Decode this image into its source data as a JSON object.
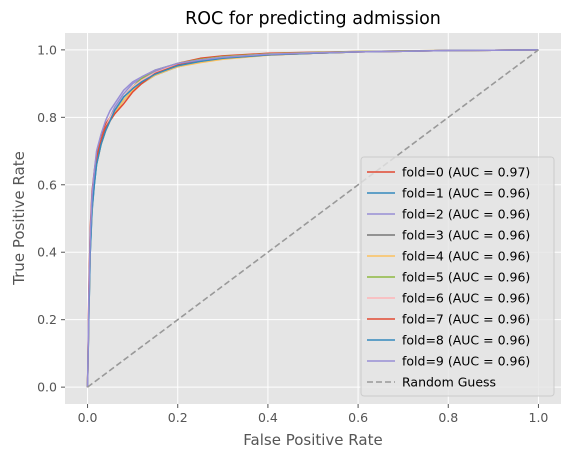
{
  "chart_data": {
    "type": "line",
    "title": "ROC for predicting admission",
    "xlabel": "False Positive Rate",
    "ylabel": "True Positive Rate",
    "xlim": [
      -0.05,
      1.05
    ],
    "ylim": [
      -0.05,
      1.05
    ],
    "xticks": [
      "0.0",
      "0.2",
      "0.4",
      "0.6",
      "0.8",
      "1.0"
    ],
    "yticks": [
      "0.0",
      "0.2",
      "0.4",
      "0.6",
      "0.8",
      "1.0"
    ],
    "grid": true,
    "background": "#e5e5e5",
    "legend_position": "lower right",
    "series": [
      {
        "name": "fold=0 (AUC = 0.97)",
        "color": "#E24A33",
        "dash": false,
        "x": [
          0,
          0.003,
          0.006,
          0.01,
          0.015,
          0.02,
          0.03,
          0.04,
          0.05,
          0.06,
          0.08,
          0.1,
          0.12,
          0.15,
          0.18,
          0.2,
          0.25,
          0.3,
          0.4,
          0.5,
          0.6,
          0.7,
          0.8,
          0.9,
          1.0
        ],
        "y": [
          0,
          0.3,
          0.47,
          0.58,
          0.64,
          0.69,
          0.74,
          0.78,
          0.8,
          0.82,
          0.86,
          0.89,
          0.91,
          0.935,
          0.95,
          0.96,
          0.975,
          0.982,
          0.99,
          0.993,
          0.995,
          0.997,
          0.998,
          0.999,
          1.0
        ]
      },
      {
        "name": "fold=1 (AUC = 0.96)",
        "color": "#348ABD",
        "dash": false,
        "x": [
          0,
          0.003,
          0.006,
          0.01,
          0.015,
          0.02,
          0.03,
          0.04,
          0.05,
          0.06,
          0.08,
          0.1,
          0.12,
          0.15,
          0.18,
          0.2,
          0.25,
          0.3,
          0.4,
          0.5,
          0.6,
          0.7,
          0.8,
          0.9,
          1.0
        ],
        "y": [
          0,
          0.22,
          0.4,
          0.52,
          0.6,
          0.66,
          0.72,
          0.76,
          0.79,
          0.81,
          0.85,
          0.88,
          0.9,
          0.925,
          0.94,
          0.95,
          0.965,
          0.975,
          0.985,
          0.99,
          0.994,
          0.996,
          0.998,
          0.999,
          1.0
        ]
      },
      {
        "name": "fold=2 (AUC = 0.96)",
        "color": "#988ED5",
        "dash": false,
        "x": [
          0,
          0.003,
          0.006,
          0.01,
          0.015,
          0.02,
          0.03,
          0.04,
          0.05,
          0.06,
          0.08,
          0.1,
          0.12,
          0.15,
          0.18,
          0.2,
          0.25,
          0.3,
          0.4,
          0.5,
          0.6,
          0.7,
          0.8,
          0.9,
          1.0
        ],
        "y": [
          0,
          0.25,
          0.43,
          0.55,
          0.62,
          0.68,
          0.73,
          0.77,
          0.8,
          0.83,
          0.87,
          0.9,
          0.915,
          0.935,
          0.95,
          0.958,
          0.97,
          0.978,
          0.986,
          0.991,
          0.994,
          0.996,
          0.998,
          0.999,
          1.0
        ]
      },
      {
        "name": "fold=3 (AUC = 0.96)",
        "color": "#777777",
        "dash": false,
        "x": [
          0,
          0.003,
          0.006,
          0.01,
          0.015,
          0.02,
          0.03,
          0.04,
          0.05,
          0.06,
          0.08,
          0.1,
          0.12,
          0.15,
          0.18,
          0.2,
          0.25,
          0.3,
          0.4,
          0.5,
          0.6,
          0.7,
          0.8,
          0.9,
          1.0
        ],
        "y": [
          0,
          0.24,
          0.42,
          0.54,
          0.61,
          0.67,
          0.72,
          0.76,
          0.79,
          0.82,
          0.86,
          0.89,
          0.91,
          0.93,
          0.945,
          0.955,
          0.968,
          0.976,
          0.985,
          0.99,
          0.994,
          0.996,
          0.998,
          0.999,
          1.0
        ]
      },
      {
        "name": "fold=4 (AUC = 0.96)",
        "color": "#FBC15E",
        "dash": false,
        "x": [
          0,
          0.003,
          0.006,
          0.01,
          0.015,
          0.02,
          0.03,
          0.04,
          0.05,
          0.06,
          0.08,
          0.1,
          0.12,
          0.15,
          0.18,
          0.2,
          0.25,
          0.3,
          0.4,
          0.5,
          0.6,
          0.7,
          0.8,
          0.9,
          1.0
        ],
        "y": [
          0,
          0.23,
          0.41,
          0.53,
          0.61,
          0.66,
          0.72,
          0.76,
          0.79,
          0.81,
          0.85,
          0.88,
          0.9,
          0.925,
          0.94,
          0.95,
          0.962,
          0.972,
          0.984,
          0.99,
          0.994,
          0.996,
          0.998,
          0.999,
          1.0
        ]
      },
      {
        "name": "fold=5 (AUC = 0.96)",
        "color": "#8EBA42",
        "dash": false,
        "x": [
          0,
          0.003,
          0.006,
          0.01,
          0.015,
          0.02,
          0.03,
          0.04,
          0.05,
          0.06,
          0.08,
          0.1,
          0.12,
          0.15,
          0.18,
          0.2,
          0.25,
          0.3,
          0.4,
          0.5,
          0.6,
          0.7,
          0.8,
          0.9,
          1.0
        ],
        "y": [
          0,
          0.25,
          0.43,
          0.55,
          0.62,
          0.68,
          0.73,
          0.77,
          0.8,
          0.82,
          0.86,
          0.89,
          0.915,
          0.94,
          0.952,
          0.96,
          0.972,
          0.98,
          0.988,
          0.992,
          0.995,
          0.997,
          0.998,
          0.999,
          1.0
        ]
      },
      {
        "name": "fold=6 (AUC = 0.96)",
        "color": "#FFB5B8",
        "dash": false,
        "x": [
          0,
          0.003,
          0.006,
          0.01,
          0.015,
          0.02,
          0.03,
          0.04,
          0.05,
          0.06,
          0.08,
          0.1,
          0.12,
          0.15,
          0.18,
          0.2,
          0.25,
          0.3,
          0.4,
          0.5,
          0.6,
          0.7,
          0.8,
          0.9,
          1.0
        ],
        "y": [
          0,
          0.24,
          0.42,
          0.54,
          0.62,
          0.67,
          0.73,
          0.77,
          0.8,
          0.82,
          0.86,
          0.89,
          0.91,
          0.932,
          0.948,
          0.957,
          0.97,
          0.978,
          0.987,
          0.991,
          0.994,
          0.996,
          0.998,
          0.999,
          1.0
        ]
      },
      {
        "name": "fold=7 (AUC = 0.96)",
        "color": "#E24A33",
        "dash": false,
        "x": [
          0,
          0.003,
          0.006,
          0.01,
          0.015,
          0.02,
          0.03,
          0.04,
          0.05,
          0.06,
          0.08,
          0.1,
          0.12,
          0.15,
          0.18,
          0.2,
          0.25,
          0.3,
          0.4,
          0.5,
          0.6,
          0.7,
          0.8,
          0.9,
          1.0
        ],
        "y": [
          0,
          0.26,
          0.44,
          0.56,
          0.63,
          0.68,
          0.73,
          0.77,
          0.79,
          0.81,
          0.84,
          0.875,
          0.9,
          0.93,
          0.945,
          0.955,
          0.968,
          0.976,
          0.985,
          0.99,
          0.994,
          0.996,
          0.998,
          0.999,
          1.0
        ]
      },
      {
        "name": "fold=8 (AUC = 0.96)",
        "color": "#348ABD",
        "dash": false,
        "x": [
          0,
          0.003,
          0.006,
          0.01,
          0.015,
          0.02,
          0.03,
          0.04,
          0.05,
          0.06,
          0.08,
          0.1,
          0.12,
          0.15,
          0.18,
          0.2,
          0.25,
          0.3,
          0.4,
          0.5,
          0.6,
          0.7,
          0.8,
          0.9,
          1.0
        ],
        "y": [
          0,
          0.22,
          0.4,
          0.53,
          0.6,
          0.66,
          0.72,
          0.76,
          0.79,
          0.82,
          0.86,
          0.885,
          0.905,
          0.928,
          0.943,
          0.953,
          0.966,
          0.975,
          0.985,
          0.99,
          0.994,
          0.996,
          0.998,
          0.999,
          1.0
        ]
      },
      {
        "name": "fold=9 (AUC = 0.96)",
        "color": "#988ED5",
        "dash": false,
        "x": [
          0,
          0.003,
          0.006,
          0.01,
          0.015,
          0.02,
          0.03,
          0.04,
          0.05,
          0.06,
          0.08,
          0.1,
          0.12,
          0.15,
          0.18,
          0.2,
          0.25,
          0.3,
          0.4,
          0.5,
          0.6,
          0.7,
          0.8,
          0.9,
          1.0
        ],
        "y": [
          0,
          0.27,
          0.45,
          0.57,
          0.64,
          0.7,
          0.75,
          0.79,
          0.82,
          0.84,
          0.88,
          0.905,
          0.92,
          0.94,
          0.952,
          0.96,
          0.97,
          0.978,
          0.987,
          0.991,
          0.994,
          0.996,
          0.998,
          0.999,
          1.0
        ]
      },
      {
        "name": "Random Guess",
        "color": "#999999",
        "dash": true,
        "x": [
          0,
          1
        ],
        "y": [
          0,
          1
        ]
      }
    ]
  }
}
